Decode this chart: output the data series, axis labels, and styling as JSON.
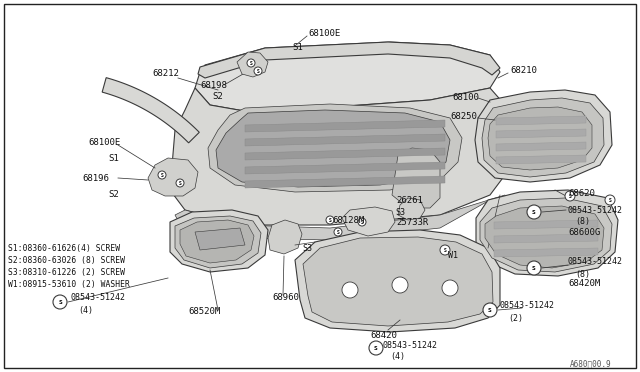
{
  "bg_color": "#f5f5f0",
  "line_color": "#4a4a4a",
  "text_color": "#111111",
  "fig_width": 6.4,
  "fig_height": 3.72,
  "dpi": 100,
  "diagram_ref": "A680　00.9",
  "legend_lines": [
    "S1:08360-61626(4) SCREW",
    "S2:08360-63026 (8) SCREW",
    "S3:08310-61226 (2) SCREW",
    "W1:08915-53610 (2) WASHER"
  ]
}
